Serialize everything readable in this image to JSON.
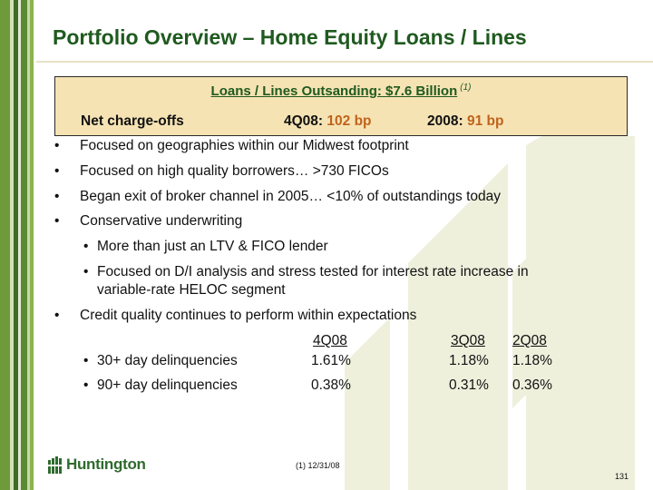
{
  "header": {
    "title": "Portfolio Overview – Home Equity Loans / Lines"
  },
  "callout": {
    "title": "Loans / Lines Outsanding: $7.6 Billion",
    "footnote_ref": "(1)",
    "nco_label": "Net charge-offs",
    "q_label": "4Q08:",
    "q_value": "102 bp",
    "y_label": "2008:",
    "y_value": "91 bp"
  },
  "bullets": [
    "Focused on geographies within our Midwest footprint",
    "Focused on high quality borrowers… >730 FICOs",
    "Began exit of broker channel in 2005… <10% of outstandings today",
    "Conservative underwriting"
  ],
  "sub_bullets": [
    "More than just an LTV & FICO lender",
    "Focused on D/I analysis and stress tested for interest rate increase in",
    "variable-rate HELOC segment"
  ],
  "quality_bullet": "Credit quality continues to perform within expectations",
  "delinquency_table": {
    "headers": [
      "4Q08",
      "3Q08",
      "2Q08"
    ],
    "rows": [
      {
        "label": "30+ day delinquencies",
        "values": [
          "1.61%",
          "1.18%",
          "1.18%"
        ]
      },
      {
        "label": "90+ day delinquencies",
        "values": [
          "0.38%",
          "0.31%",
          "0.36%"
        ]
      }
    ]
  },
  "bullet_glyph": "•",
  "footer": {
    "footnote": "(1)  12/31/08",
    "page_number": "131",
    "logo_text": "Huntington",
    "logo_icon": "huntington-shield-icon"
  },
  "colors": {
    "title_green": "#1f5a1f",
    "accent_orange": "#c0631c",
    "callout_fill": "#f6e3b4",
    "logo_green": "#2e6b2e"
  }
}
